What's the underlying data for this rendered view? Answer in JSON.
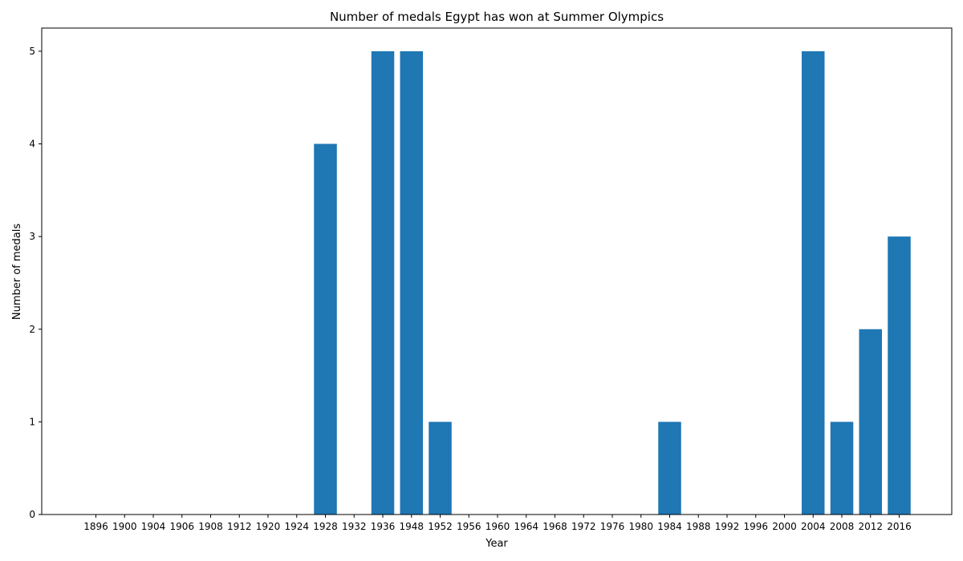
{
  "chart_data": {
    "type": "bar",
    "title": "Number of medals Egypt has won at Summer Olympics",
    "xlabel": "Year",
    "ylabel": "Number of medals",
    "categories": [
      "1896",
      "1900",
      "1904",
      "1906",
      "1908",
      "1912",
      "1920",
      "1924",
      "1928",
      "1932",
      "1936",
      "1948",
      "1952",
      "1956",
      "1960",
      "1964",
      "1968",
      "1972",
      "1976",
      "1980",
      "1984",
      "1988",
      "1992",
      "1996",
      "2000",
      "2004",
      "2008",
      "2012",
      "2016"
    ],
    "values": [
      0,
      0,
      0,
      0,
      0,
      0,
      0,
      0,
      4,
      0,
      5,
      5,
      1,
      0,
      0,
      0,
      0,
      0,
      0,
      0,
      1,
      0,
      0,
      0,
      0,
      5,
      1,
      2,
      3
    ],
    "ylim": [
      0,
      5.25
    ],
    "yticks": [
      0,
      1,
      2,
      3,
      4,
      5
    ],
    "bar_color": "#1f77b4",
    "grid": false,
    "legend": "none"
  }
}
